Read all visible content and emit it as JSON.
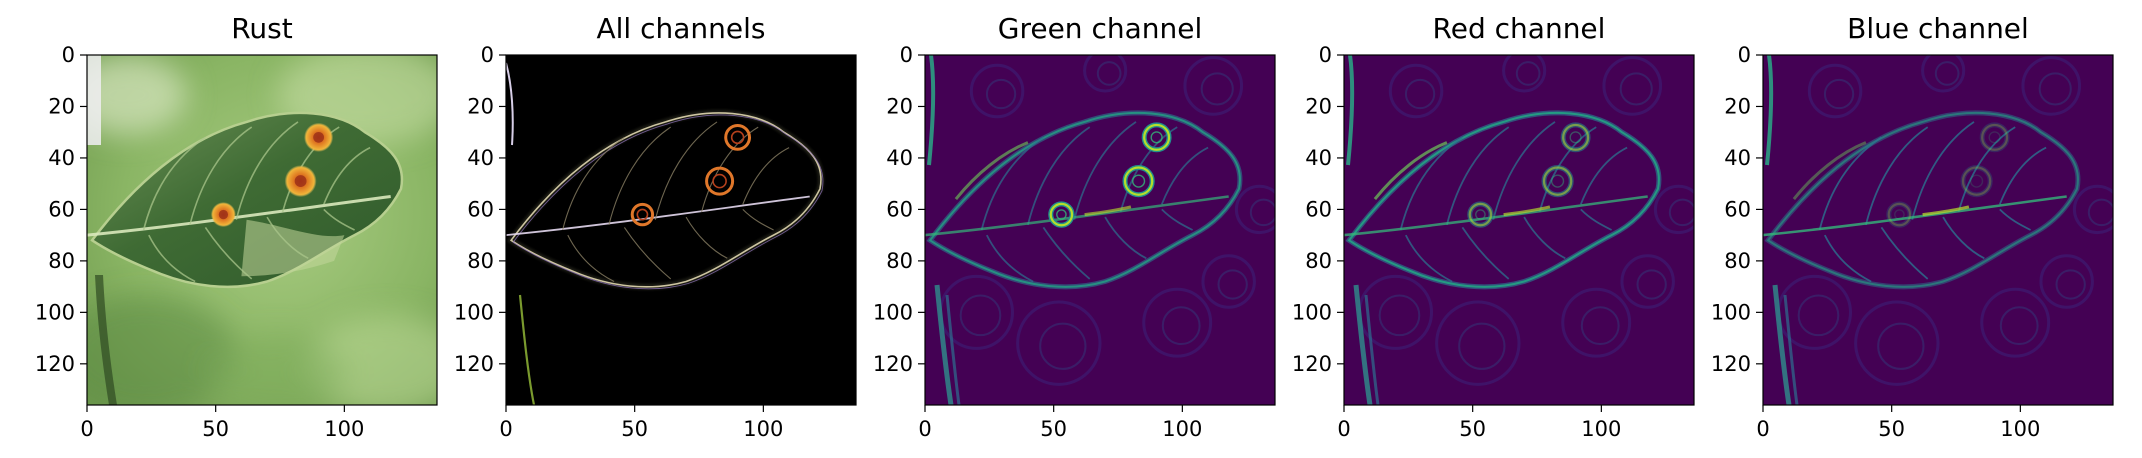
{
  "figure": {
    "panels": [
      {
        "title": "Rust",
        "kind": "photo"
      },
      {
        "title": "All channels",
        "kind": "edges-rgb"
      },
      {
        "title": "Green channel",
        "kind": "edges-viridis",
        "ring_strength": 1.0,
        "vein_strength": 0.7,
        "edge_strength": 0.75
      },
      {
        "title": "Red channel",
        "kind": "edges-viridis",
        "ring_strength": 0.55,
        "vein_strength": 0.75,
        "edge_strength": 0.85
      },
      {
        "title": "Blue channel",
        "kind": "edges-viridis",
        "ring_strength": 0.25,
        "vein_strength": 0.8,
        "edge_strength": 0.55
      }
    ],
    "image_size": [
      136,
      136
    ],
    "x_ticks": [
      "0",
      "50",
      "100"
    ],
    "y_ticks": [
      "0",
      "20",
      "40",
      "60",
      "80",
      "100",
      "120"
    ],
    "colors": {
      "viridis_low": "#440154",
      "viridis_mid": "#21908d",
      "viridis_high": "#fde725",
      "leaf": "#3f6b34",
      "background": "#8fb86a",
      "rust_spot": "#e8a02a"
    }
  }
}
